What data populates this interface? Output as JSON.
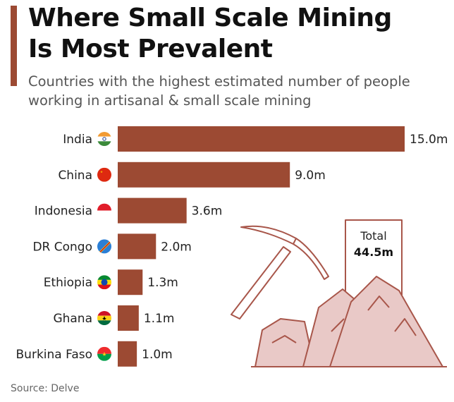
{
  "header": {
    "title_line1": "Where Small Scale Mining",
    "title_line2": "Is Most Prevalent",
    "subtitle_line1": "Countries with the highest estimated number of people",
    "subtitle_line2": "working in artisanal & small scale mining"
  },
  "total": {
    "label": "Total",
    "value": "44.5m"
  },
  "source": "Source: Delve",
  "colors": {
    "bar": "#9c4a33",
    "accent": "#9c4a33",
    "illustration_stroke": "#a8564a",
    "rock_fill": "#e9c9c7"
  },
  "chart_data": {
    "type": "bar",
    "orientation": "horizontal",
    "categories": [
      "India",
      "China",
      "Indonesia",
      "DR Congo",
      "Ethiopia",
      "Ghana",
      "Burkina Faso"
    ],
    "values": [
      15.0,
      9.0,
      3.6,
      2.0,
      1.3,
      1.1,
      1.0
    ],
    "value_labels": [
      "15.0m",
      "9.0m",
      "3.6m",
      "2.0m",
      "1.3m",
      "1.1m",
      "1.0m"
    ],
    "flags": [
      "india-flag-icon",
      "china-flag-icon",
      "indonesia-flag-icon",
      "dr-congo-flag-icon",
      "ethiopia-flag-icon",
      "ghana-flag-icon",
      "burkina-faso-flag-icon"
    ],
    "title": "Where Small Scale Mining Is Most Prevalent",
    "xlabel": "",
    "ylabel": "",
    "xlim": [
      0,
      15
    ],
    "grid": false,
    "legend": "none"
  }
}
